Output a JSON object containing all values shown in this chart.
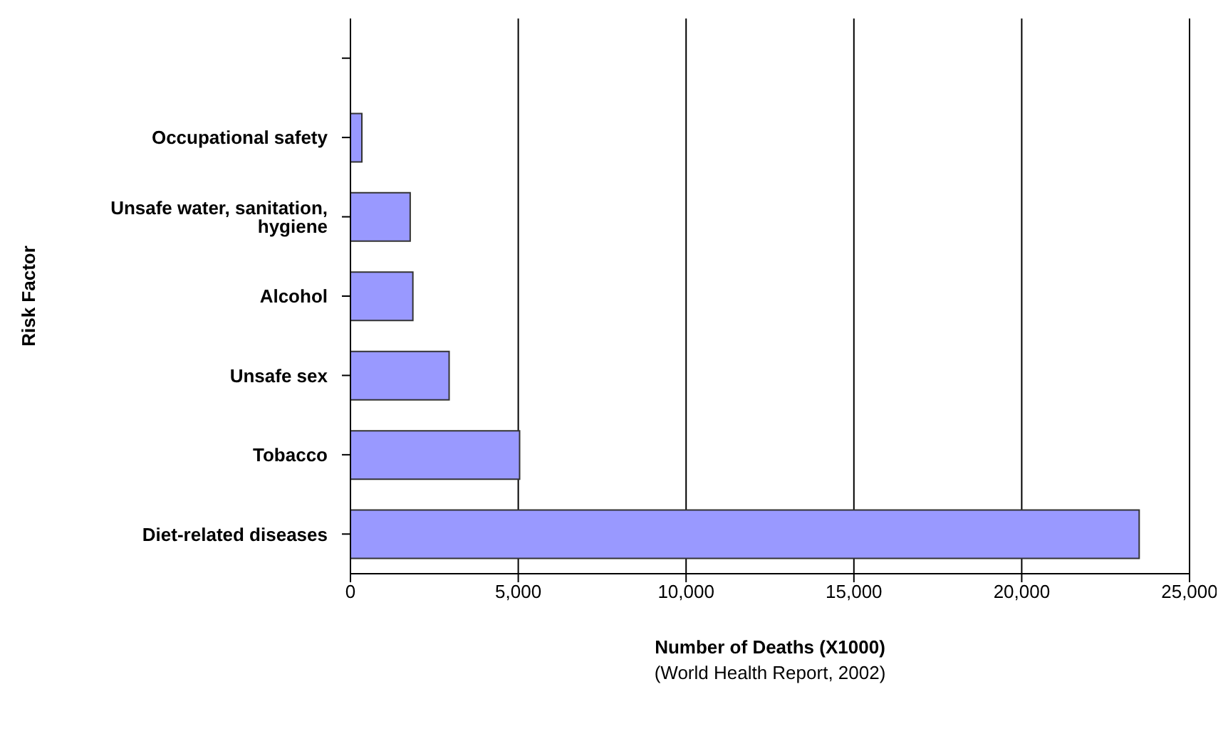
{
  "chart_data": {
    "type": "bar",
    "orientation": "horizontal",
    "xlabel": "Number of Deaths (X1000)",
    "ylabel": "Risk Factor",
    "annotations": [
      "(World Health Report, 2002)"
    ],
    "categories": [
      null,
      "Occupational safety",
      "Unsafe water, sanitation, hygiene",
      "Alcohol",
      "Unsafe sex",
      "Tobacco",
      "Diet-related diseases"
    ],
    "values": [
      null,
      340,
      1780,
      1860,
      2940,
      5040,
      23500
    ],
    "color": "#9999ff",
    "xlim": [
      0,
      25000
    ],
    "xticks": [
      {
        "value": 0,
        "label": "0"
      },
      {
        "value": 5000,
        "label": "5,000"
      },
      {
        "value": 10000,
        "label": "10,000"
      },
      {
        "value": 15000,
        "label": "15,000"
      },
      {
        "value": 20000,
        "label": "20,000"
      },
      {
        "value": 25000,
        "label": "25,000"
      }
    ],
    "grid": "x",
    "legend": false
  }
}
